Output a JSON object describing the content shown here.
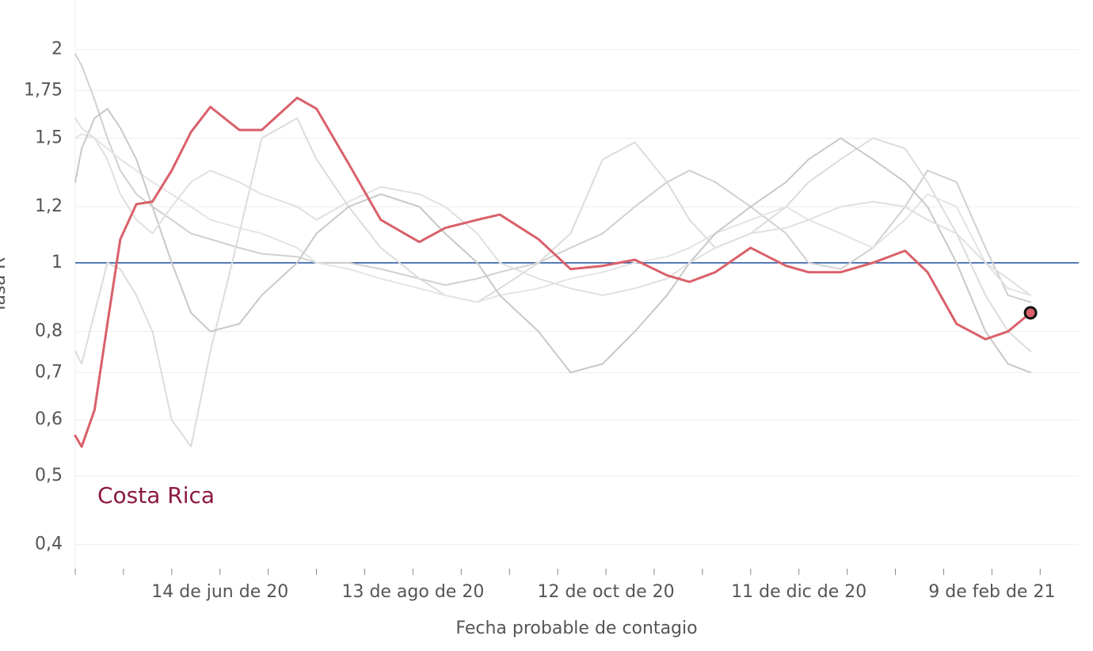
{
  "chart_data": {
    "type": "line",
    "ylabel": "Tasa R",
    "xlabel": "Fecha probable de contagio",
    "annotation": "Costa Rica",
    "log_scale": true,
    "grid": true,
    "reference_line": {
      "value": 1,
      "color": "#1f4e9f"
    },
    "xlim": [
      "2020-04-30",
      "2021-03-08"
    ],
    "ylim": [
      0.37,
      2.35
    ],
    "yticks": [
      {
        "value": 0.4,
        "label": "0,4"
      },
      {
        "value": 0.5,
        "label": "0,5"
      },
      {
        "value": 0.6,
        "label": "0,6"
      },
      {
        "value": 0.7,
        "label": "0,7"
      },
      {
        "value": 0.8,
        "label": "0,8"
      },
      1,
      {
        "value": 1.2,
        "label": "1,2"
      },
      {
        "value": 1.5,
        "label": "1,5"
      },
      {
        "value": 1.75,
        "label": "1,75"
      },
      2
    ],
    "xticks": [
      {
        "value": "2020-04-30",
        "label": null
      },
      {
        "value": "2020-05-15",
        "label": null
      },
      {
        "value": "2020-05-30",
        "label": null
      },
      {
        "value": "2020-06-14",
        "label": "14 de jun de 20"
      },
      {
        "value": "2020-06-29",
        "label": null
      },
      {
        "value": "2020-07-14",
        "label": null
      },
      {
        "value": "2020-07-29",
        "label": null
      },
      {
        "value": "2020-08-13",
        "label": "13 de ago de 20"
      },
      {
        "value": "2020-08-28",
        "label": null
      },
      {
        "value": "2020-09-12",
        "label": null
      },
      {
        "value": "2020-09-27",
        "label": null
      },
      {
        "value": "2020-10-12",
        "label": "12 de oct de 20"
      },
      {
        "value": "2020-10-27",
        "label": null
      },
      {
        "value": "2020-11-11",
        "label": null
      },
      {
        "value": "2020-11-26",
        "label": null
      },
      {
        "value": "2020-12-11",
        "label": "11 de dic de 20"
      },
      {
        "value": "2020-12-26",
        "label": null
      },
      {
        "value": "2021-01-10",
        "label": null
      },
      {
        "value": "2021-01-25",
        "label": null
      },
      {
        "value": "2021-02-09",
        "label": "9 de feb de 21"
      },
      {
        "value": "2021-02-24",
        "label": null
      }
    ],
    "x": [
      "2020-04-30",
      "2020-05-02",
      "2020-05-06",
      "2020-05-10",
      "2020-05-14",
      "2020-05-19",
      "2020-05-24",
      "2020-05-30",
      "2020-06-05",
      "2020-06-11",
      "2020-06-20",
      "2020-06-27",
      "2020-07-08",
      "2020-07-14",
      "2020-07-24",
      "2020-08-03",
      "2020-08-15",
      "2020-08-23",
      "2020-09-02",
      "2020-09-09",
      "2020-09-21",
      "2020-10-01",
      "2020-10-11",
      "2020-10-21",
      "2020-10-31",
      "2020-11-07",
      "2020-11-15",
      "2020-11-26",
      "2020-12-07",
      "2020-12-14",
      "2020-12-24",
      "2021-01-03",
      "2021-01-13",
      "2021-01-20",
      "2021-01-29",
      "2021-02-07",
      "2021-02-14",
      "2021-02-21"
    ],
    "series": [
      {
        "color": "#d0d0d0",
        "values": [
          1.97,
          1.9,
          1.7,
          1.5,
          1.35,
          1.25,
          1.2,
          1.15,
          1.1,
          1.08,
          1.05,
          1.03,
          1.02,
          1.0,
          1.0,
          0.98,
          0.95,
          0.93,
          0.95,
          0.97,
          1.0,
          1.05,
          1.1,
          1.2,
          1.3,
          1.35,
          1.3,
          1.2,
          1.1,
          1.0,
          0.98,
          1.05,
          1.2,
          1.35,
          1.3,
          1.05,
          0.9,
          0.88
        ]
      },
      {
        "color": "#dcdcdc",
        "values": [
          0.75,
          0.72,
          0.85,
          1.0,
          0.98,
          0.9,
          0.8,
          0.6,
          0.55,
          0.75,
          1.1,
          1.5,
          1.6,
          1.4,
          1.2,
          1.05,
          0.95,
          0.9,
          0.88,
          0.92,
          1.0,
          1.1,
          1.4,
          1.48,
          1.3,
          1.15,
          1.05,
          1.1,
          1.2,
          1.3,
          1.4,
          1.5,
          1.45,
          1.3,
          1.1,
          0.9,
          0.8,
          0.75
        ]
      },
      {
        "color": "#e4e4e4",
        "values": [
          1.5,
          1.52,
          1.5,
          1.45,
          1.4,
          1.35,
          1.3,
          1.25,
          1.2,
          1.15,
          1.12,
          1.1,
          1.05,
          1.0,
          0.98,
          0.95,
          0.92,
          0.9,
          0.88,
          0.9,
          0.92,
          0.95,
          0.97,
          1.0,
          1.02,
          1.05,
          1.1,
          1.15,
          1.2,
          1.15,
          1.1,
          1.05,
          1.15,
          1.25,
          1.2,
          1.0,
          0.92,
          0.9
        ]
      },
      {
        "color": "#c8c8c8",
        "values": [
          1.3,
          1.45,
          1.6,
          1.65,
          1.55,
          1.4,
          1.2,
          1.0,
          0.85,
          0.8,
          0.82,
          0.9,
          1.0,
          1.1,
          1.2,
          1.25,
          1.2,
          1.1,
          1.0,
          0.9,
          0.8,
          0.7,
          0.72,
          0.8,
          0.9,
          1.0,
          1.1,
          1.2,
          1.3,
          1.4,
          1.5,
          1.4,
          1.3,
          1.2,
          1.0,
          0.8,
          0.72,
          0.7
        ]
      },
      {
        "color": "#e0e0e0",
        "values": [
          1.6,
          1.55,
          1.5,
          1.4,
          1.25,
          1.15,
          1.1,
          1.2,
          1.3,
          1.35,
          1.3,
          1.25,
          1.2,
          1.15,
          1.22,
          1.28,
          1.25,
          1.2,
          1.1,
          1.0,
          0.95,
          0.92,
          0.9,
          0.92,
          0.95,
          1.0,
          1.05,
          1.1,
          1.12,
          1.15,
          1.2,
          1.22,
          1.2,
          1.15,
          1.1,
          1.0,
          0.95,
          0.9
        ]
      },
      {
        "name": "Costa Rica",
        "color": "#d9606a",
        "end_marker": true,
        "values": [
          0.57,
          0.55,
          0.62,
          0.82,
          1.08,
          1.21,
          1.22,
          1.35,
          1.53,
          1.66,
          1.54,
          1.54,
          1.71,
          1.65,
          1.38,
          1.15,
          1.07,
          1.12,
          1.15,
          1.17,
          1.08,
          0.98,
          0.99,
          1.01,
          0.96,
          0.94,
          0.97,
          1.05,
          0.99,
          0.97,
          0.97,
          1.0,
          1.04,
          0.97,
          0.82,
          0.78,
          0.8,
          0.85
        ]
      }
    ]
  }
}
